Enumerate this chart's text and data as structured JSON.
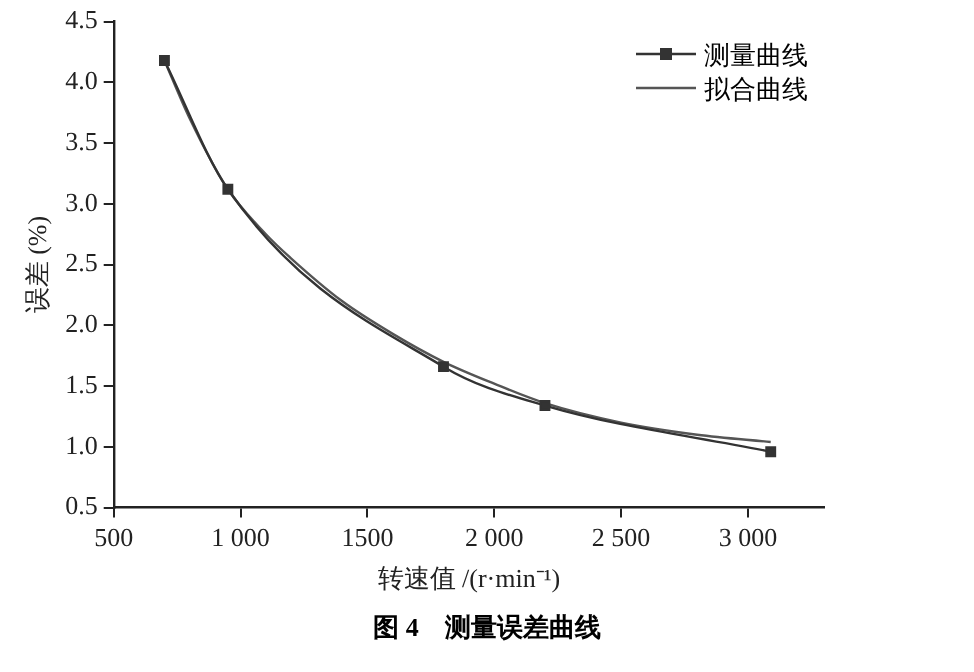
{
  "chart_data": {
    "type": "line",
    "xlabel": "转速值 /(r·min⁻¹)",
    "ylabel": "误差 (%)",
    "annotations": [
      "图 4    测量误差曲线"
    ],
    "xlim": [
      500,
      3300
    ],
    "xticks": [
      500,
      {
        "value": 1000,
        "label": "1 000"
      },
      1500,
      {
        "value": 2000,
        "label": "2 000"
      },
      {
        "value": 2500,
        "label": "2 500"
      },
      {
        "value": 3000,
        "label": "3 000"
      }
    ],
    "ylim": [
      0.5,
      4.5
    ],
    "yticks": [
      0.5,
      {
        "value": 1,
        "label": "1.0"
      },
      1.5,
      {
        "value": 2,
        "label": "2.0"
      },
      2.5,
      {
        "value": 3,
        "label": "3.0"
      },
      3.5,
      {
        "value": 4,
        "label": "4.0"
      },
      4.5
    ],
    "grid": false,
    "legend": "top right",
    "series": [
      {
        "name": "测量曲线",
        "color": "#333333",
        "marker": "square",
        "x": [
          700,
          950,
          1800,
          2200,
          3090
        ],
        "values": [
          4.18,
          3.12,
          1.66,
          1.34,
          0.96
        ]
      },
      {
        "name": "拟合曲线",
        "color": "#555555",
        "marker": "none",
        "x": [
          700,
          800,
          950,
          1100,
          1200,
          1400,
          1600,
          1800,
          2000,
          2200,
          2500,
          2800,
          3090
        ],
        "values": [
          4.18,
          3.7,
          3.12,
          2.75,
          2.55,
          2.2,
          1.93,
          1.7,
          1.52,
          1.36,
          1.2,
          1.1,
          1.04
        ]
      }
    ]
  }
}
